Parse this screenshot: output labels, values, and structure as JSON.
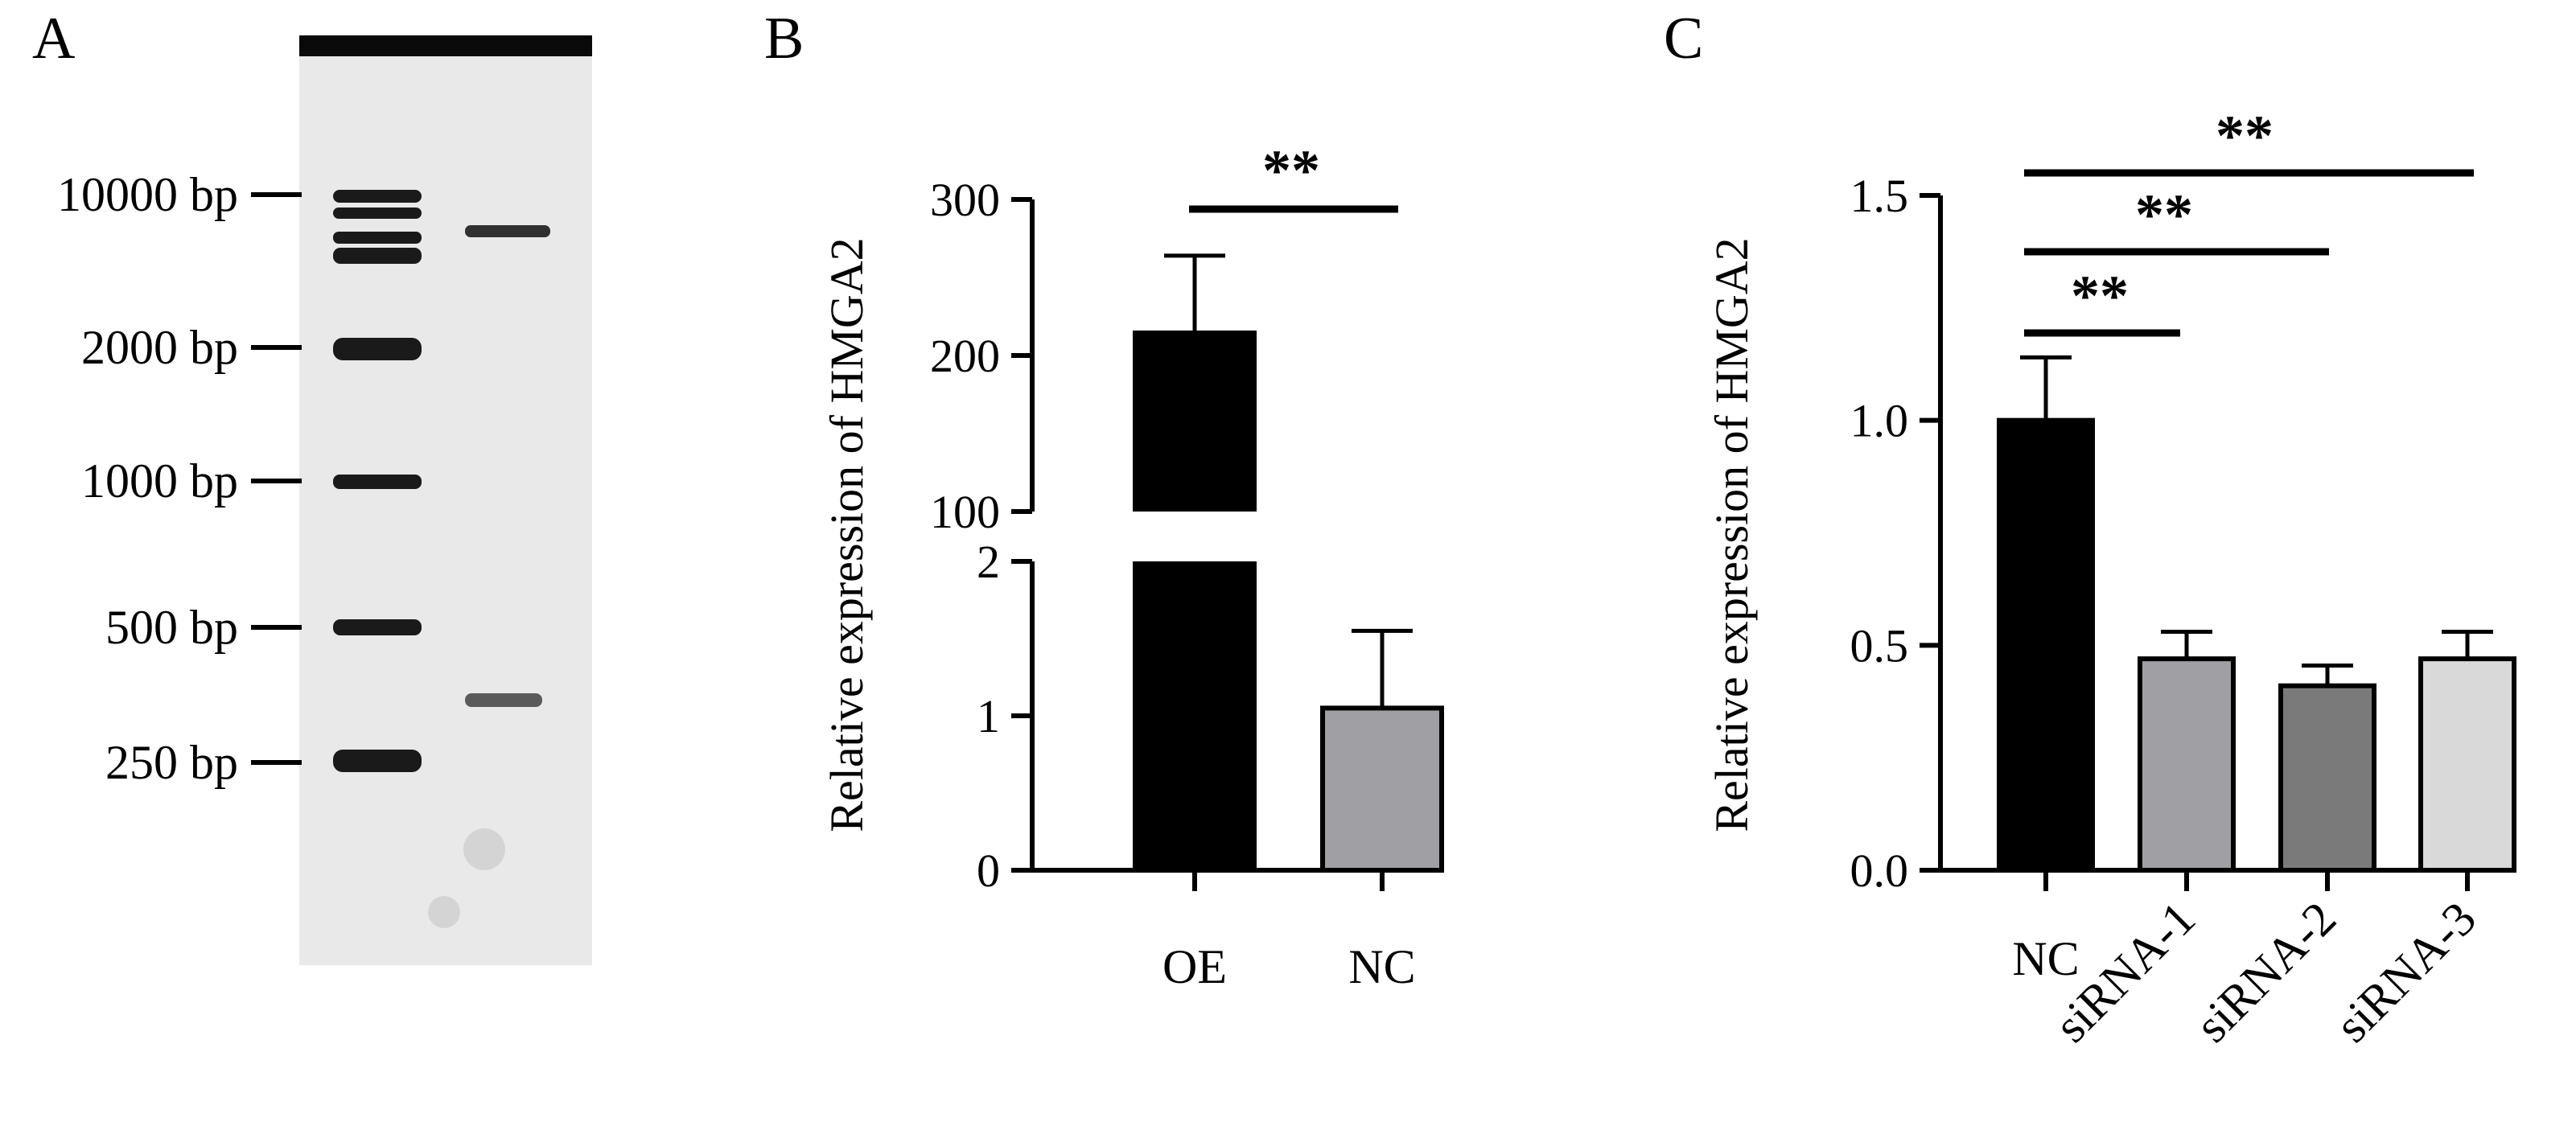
{
  "panels": [
    {
      "letter": "A"
    },
    {
      "letter": "B"
    },
    {
      "letter": "C"
    }
  ],
  "gel": {
    "ladder_labels": [
      "10000 bp",
      "2000 bp",
      "1000 bp",
      "500 bp",
      "250 bp"
    ]
  },
  "chart_data": [
    {
      "panel": "B",
      "type": "bar",
      "ylabel": "Relative expression of HMGA2",
      "categories": [
        "OE",
        "NC"
      ],
      "values": [
        216,
        1.05
      ],
      "errors": [
        48,
        0.5
      ],
      "colors": [
        "#000000",
        "#a0a0a4"
      ],
      "axis_break": {
        "lower": [
          0,
          2
        ],
        "upper": [
          100,
          300
        ]
      },
      "yticks_lower": [
        "0",
        "1",
        "2"
      ],
      "yticks_upper": [
        "100",
        "200",
        "300"
      ],
      "significance": [
        {
          "from": "OE",
          "to": "NC",
          "label": "**"
        }
      ]
    },
    {
      "panel": "C",
      "type": "bar",
      "ylabel": "Relative expression of HMGA2",
      "categories": [
        "NC",
        "siRNA-1",
        "siRNA-2",
        "siRNA-3"
      ],
      "values": [
        1.0,
        0.47,
        0.41,
        0.47
      ],
      "errors": [
        0.14,
        0.06,
        0.045,
        0.06
      ],
      "colors": [
        "#000000",
        "#a0a0a4",
        "#7a7a7a",
        "#d9d9d9"
      ],
      "ylim": [
        0,
        1.5
      ],
      "yticks": [
        "0.0",
        "0.5",
        "1.0",
        "1.5"
      ],
      "significance": [
        {
          "from": "NC",
          "to": "siRNA-1",
          "label": "**"
        },
        {
          "from": "NC",
          "to": "siRNA-2",
          "label": "**"
        },
        {
          "from": "NC",
          "to": "siRNA-3",
          "label": "**"
        }
      ]
    }
  ]
}
